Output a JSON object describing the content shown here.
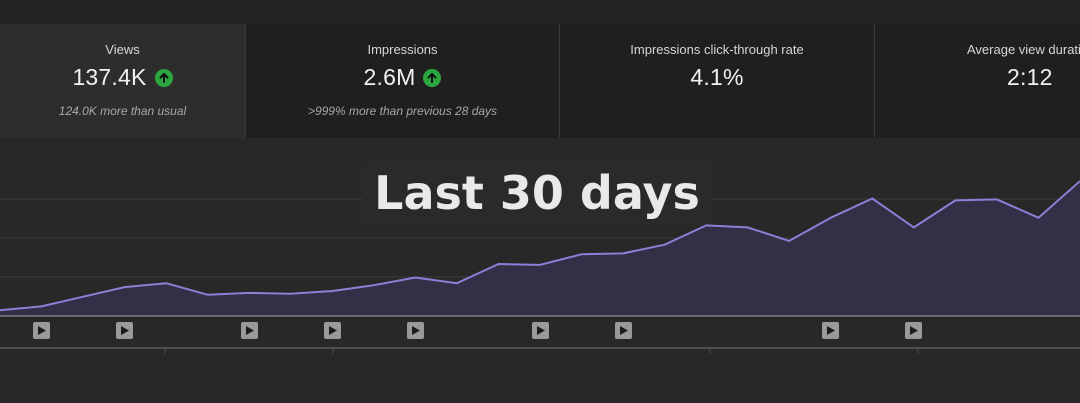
{
  "cards": [
    {
      "label": "Views",
      "value": "137.4K",
      "up": true,
      "sub": "124.0K more than usual",
      "active": true
    },
    {
      "label": "Impressions",
      "value": "2.6M",
      "up": true,
      "sub": ">999% more than previous 28 days",
      "active": false
    },
    {
      "label": "Impressions click-through rate",
      "value": "4.1%",
      "up": false,
      "sub": "",
      "active": false
    },
    {
      "label": "Average view durati",
      "value": "2:12",
      "up": false,
      "sub": "",
      "active": false
    }
  ],
  "overlay": {
    "text": "Last 30 days"
  },
  "chart_data": {
    "type": "area",
    "values": [
      3,
      5,
      10,
      15,
      17,
      11,
      12,
      11.5,
      13,
      16,
      20,
      17,
      27,
      26.5,
      32,
      32.5,
      37,
      47,
      46,
      39,
      51,
      61,
      46,
      60,
      60.5,
      51,
      70
    ],
    "ylim": [
      0,
      82
    ],
    "line_color": "#8b7fd6",
    "fill_color": "#35304a",
    "grid": true,
    "video_markers": [
      1,
      3,
      6,
      8,
      10,
      13,
      15,
      20,
      22
    ]
  },
  "colors": {
    "accent_up": "#2ba640",
    "background": "#282828"
  }
}
